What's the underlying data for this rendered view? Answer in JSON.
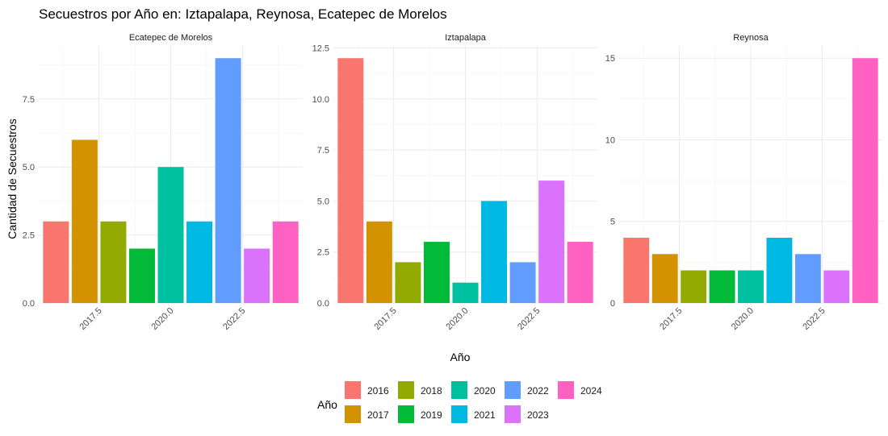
{
  "chart_data": {
    "type": "bar",
    "title": "Secuestros por Año en: Iztapalapa, Reynosa, Ecatepec de Morelos",
    "xlabel": "Año",
    "ylabel": "Cantidad de Secuestros",
    "x_ticks": [
      "2017.5",
      "2020.0",
      "2022.5"
    ],
    "legend": {
      "title": "Año",
      "position": "bottom",
      "entries": [
        {
          "label": "2016",
          "color": "#F8766D"
        },
        {
          "label": "2017",
          "color": "#D39200"
        },
        {
          "label": "2018",
          "color": "#93AA00"
        },
        {
          "label": "2019",
          "color": "#00BA38"
        },
        {
          "label": "2020",
          "color": "#00C19F"
        },
        {
          "label": "2021",
          "color": "#00B9E3"
        },
        {
          "label": "2022",
          "color": "#619CFF"
        },
        {
          "label": "2023",
          "color": "#DB72FB"
        },
        {
          "label": "2024",
          "color": "#FF61C3"
        }
      ]
    },
    "years": [
      2016,
      2017,
      2018,
      2019,
      2020,
      2021,
      2022,
      2023,
      2024
    ],
    "xlim": [
      2015.4,
      2024.6
    ],
    "grid": true,
    "panels": [
      {
        "name": "Ecatepec de Morelos",
        "values": [
          3,
          6,
          3,
          2,
          5,
          3,
          9,
          2,
          3
        ],
        "ylim": [
          0,
          9.45
        ],
        "y_ticks": [
          "0.0",
          "2.5",
          "5.0",
          "7.5"
        ]
      },
      {
        "name": "Iztapalapa",
        "values": [
          12,
          4,
          2,
          3,
          1,
          5,
          2,
          6,
          3
        ],
        "ylim": [
          0,
          12.6
        ],
        "y_ticks": [
          "0.0",
          "2.5",
          "5.0",
          "7.5",
          "10.0",
          "12.5"
        ]
      },
      {
        "name": "Reynosa",
        "values": [
          4,
          3,
          2,
          2,
          2,
          4,
          3,
          2,
          15
        ],
        "ylim": [
          0,
          15.75
        ],
        "y_ticks": [
          "0",
          "5",
          "10",
          "15"
        ]
      }
    ]
  }
}
